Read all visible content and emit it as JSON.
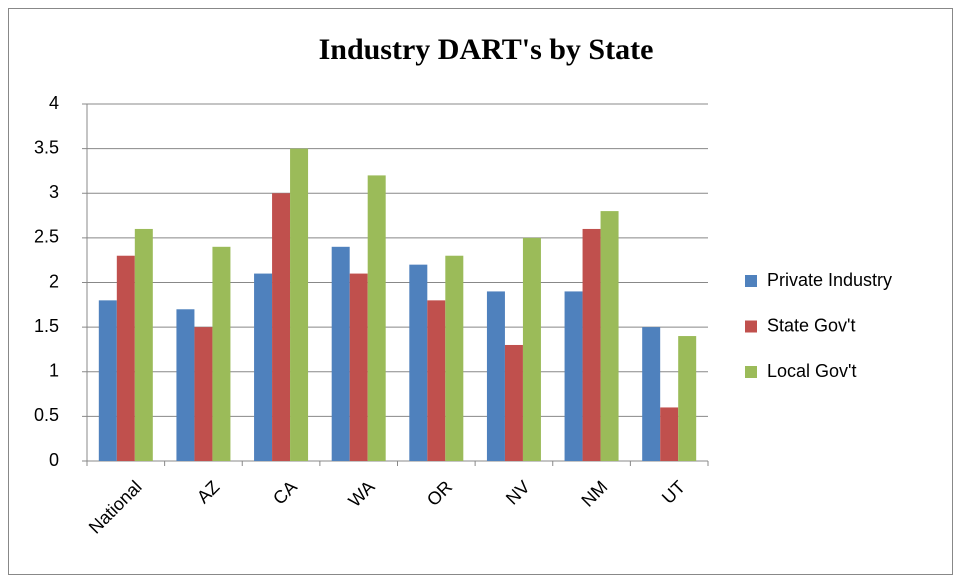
{
  "chart_data": {
    "type": "bar",
    "title": "Industry DART's by State",
    "categories": [
      "National",
      "AZ",
      "CA",
      "WA",
      "OR",
      "NV",
      "NM",
      "UT"
    ],
    "series": [
      {
        "name": "Private Industry",
        "color": "#4f81bd",
        "values": [
          1.8,
          1.7,
          2.1,
          2.4,
          2.2,
          1.9,
          1.9,
          1.5
        ]
      },
      {
        "name": "State Gov't",
        "color": "#c0504d",
        "values": [
          2.3,
          1.5,
          3.0,
          2.1,
          1.8,
          1.3,
          2.6,
          0.6
        ]
      },
      {
        "name": "Local Gov't",
        "color": "#9bbb59",
        "values": [
          2.6,
          2.4,
          3.5,
          3.2,
          2.3,
          2.5,
          2.8,
          1.4
        ]
      }
    ],
    "ylim": [
      0,
      4
    ],
    "yticks": [
      0,
      0.5,
      1,
      1.5,
      2,
      2.5,
      3,
      3.5,
      4
    ],
    "grid": true,
    "legend": "right"
  }
}
